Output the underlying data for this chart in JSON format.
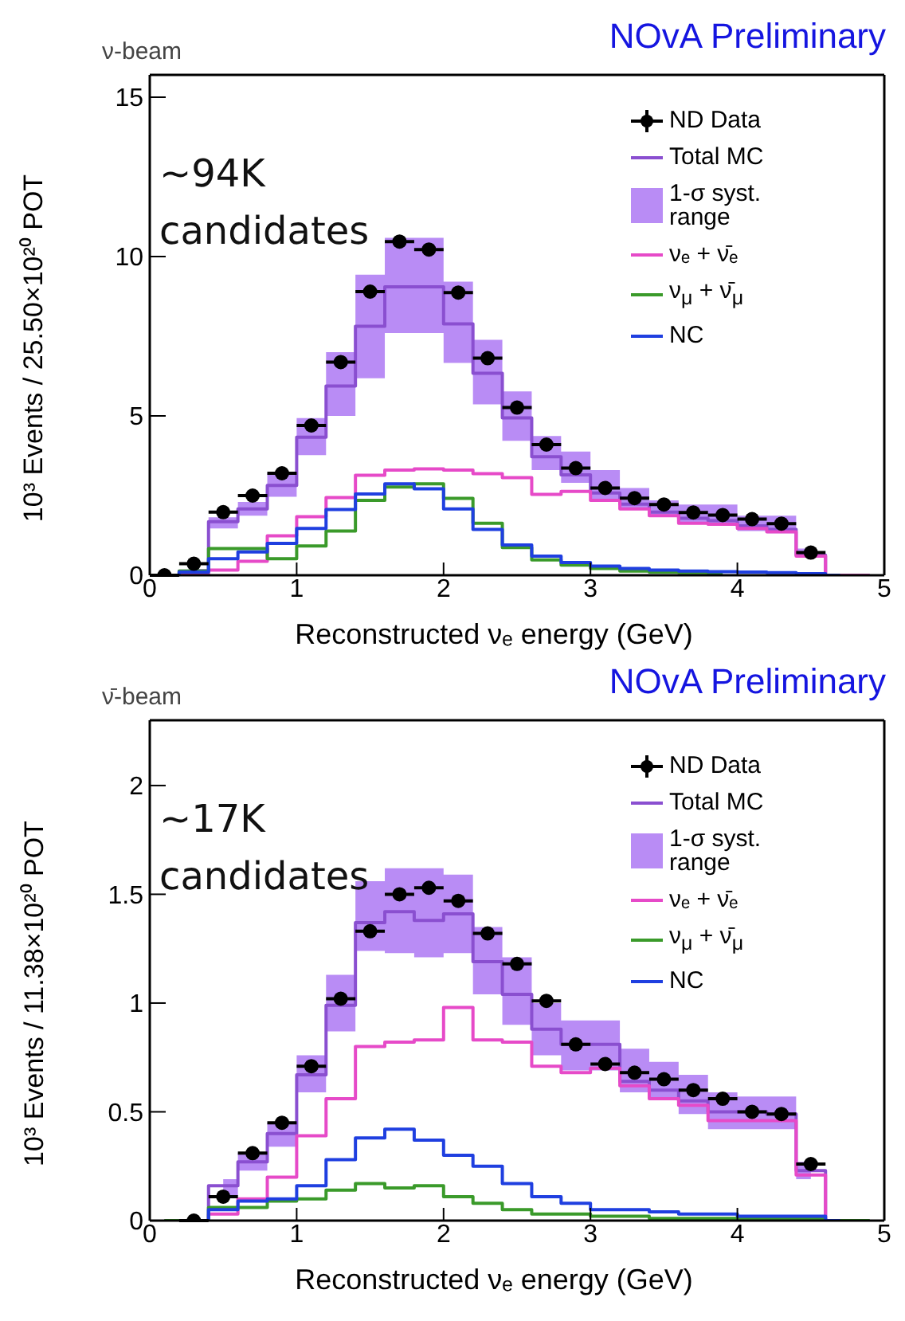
{
  "chart_data": [
    {
      "type": "step",
      "title": "ν-beam",
      "subtitle": "NOvA Preliminary",
      "xlabel": "Reconstructed νₑ energy (GeV)",
      "ylabel": "10³ Events / 25.50×10²⁰ POT",
      "annotations": [
        "~94K candidates",
        "1-σ syst. range"
      ],
      "x": [
        0.1,
        0.3,
        0.5,
        0.7,
        0.9,
        1.1,
        1.3,
        1.5,
        1.7,
        1.9,
        2.1,
        2.3,
        2.5,
        2.7,
        2.9,
        3.1,
        3.3,
        3.5,
        3.7,
        3.9,
        4.1,
        4.3,
        4.5,
        4.7,
        4.9
      ],
      "xlim": [
        0,
        5
      ],
      "xticks": [
        0,
        1,
        2,
        3,
        4,
        5
      ],
      "ylim": [
        0,
        15.7
      ],
      "yticks": [
        0,
        5,
        10,
        15
      ],
      "legend": "top right",
      "grid": false,
      "series": [
        {
          "name": "ND Data",
          "type": "scatter",
          "marker": "circle",
          "color": "#000000",
          "values": [
            0,
            0.36,
            1.98,
            2.5,
            3.2,
            4.7,
            6.69,
            8.9,
            10.47,
            10.22,
            8.87,
            6.81,
            5.26,
            4.1,
            3.36,
            2.74,
            2.42,
            2.22,
            1.97,
            1.89,
            1.76,
            1.62,
            0.71,
            null,
            null
          ],
          "xerrors": [
            0.1,
            0.1,
            0.1,
            0.1,
            0.1,
            0.1,
            0.1,
            0.1,
            0.1,
            0.1,
            0.1,
            0.1,
            0.1,
            0.1,
            0.1,
            0.1,
            0.1,
            0.1,
            0.1,
            0.1,
            0.1,
            0.1,
            0.1,
            null,
            null
          ]
        },
        {
          "name": "Total MC",
          "color": "#8a4fd0",
          "values": [
            0,
            0.13,
            1.68,
            2.08,
            2.82,
            4.33,
            5.94,
            7.81,
            9.05,
            9.05,
            7.89,
            6.34,
            4.94,
            3.72,
            3.15,
            2.58,
            2.23,
            1.98,
            1.79,
            1.71,
            1.55,
            1.44,
            0.63,
            0,
            0
          ],
          "lower": [
            null,
            0.1,
            1.47,
            1.87,
            2.46,
            3.77,
            5.0,
            6.18,
            7.6,
            7.6,
            6.66,
            5.36,
            4.22,
            3.3,
            2.9,
            2.38,
            2.1,
            1.84,
            1.6,
            1.63,
            1.39,
            1.32,
            0.57,
            null,
            null
          ],
          "upper": [
            null,
            0.2,
            1.82,
            2.3,
            3.2,
            4.93,
            7.0,
            9.43,
            10.59,
            10.59,
            9.21,
            7.39,
            5.77,
            4.37,
            3.88,
            3.3,
            2.74,
            2.35,
            2.22,
            2.22,
            1.87,
            1.87,
            0.84,
            null,
            null
          ]
        },
        {
          "name": "νₑ + ν̄ₑ",
          "color": "#e64ac8",
          "values": [
            0,
            0.02,
            0.16,
            0.44,
            1.24,
            1.84,
            2.44,
            3.14,
            3.3,
            3.34,
            3.3,
            3.19,
            3.06,
            2.54,
            2.63,
            2.35,
            2.08,
            1.87,
            1.63,
            1.6,
            1.47,
            1.36,
            0.6,
            0,
            0
          ]
        },
        {
          "name": "ν$_{μ}$ + ν̄$_{μ}$",
          "color": "#3a9a2a",
          "values": [
            0,
            0.13,
            0.84,
            0.84,
            0.52,
            0.92,
            1.39,
            2.35,
            2.77,
            2.87,
            2.41,
            1.63,
            0.87,
            0.48,
            0.32,
            0.21,
            0.13,
            0.1,
            0.08,
            0.06,
            null,
            null,
            null,
            null,
            null
          ]
        },
        {
          "name": "NC",
          "color": "#1f3fe0",
          "values": [
            0,
            0.1,
            0.52,
            0.73,
            1.0,
            1.47,
            2.06,
            2.55,
            2.87,
            2.71,
            2.08,
            1.44,
            0.95,
            0.6,
            0.4,
            0.29,
            0.21,
            0.16,
            0.13,
            0.11,
            0.1,
            0.08,
            0.05,
            0,
            null
          ]
        }
      ]
    },
    {
      "type": "step",
      "title": "ν̄-beam",
      "subtitle": "NOvA Preliminary",
      "xlabel": "Reconstructed νₑ energy (GeV)",
      "ylabel": "10³ Events / 11.38×10²⁰ POT",
      "annotations": [
        "~17K candidates",
        "1-σ syst. range"
      ],
      "x": [
        0.1,
        0.3,
        0.5,
        0.7,
        0.9,
        1.1,
        1.3,
        1.5,
        1.7,
        1.9,
        2.1,
        2.3,
        2.5,
        2.7,
        2.9,
        3.1,
        3.3,
        3.5,
        3.7,
        3.9,
        4.1,
        4.3,
        4.5,
        4.7,
        4.9
      ],
      "xlim": [
        0,
        5
      ],
      "xticks": [
        0,
        1,
        2,
        3,
        4,
        5
      ],
      "ylim": [
        0,
        2.3
      ],
      "yticks": [
        0,
        0.5,
        1,
        1.5,
        2
      ],
      "legend": "top right",
      "grid": false,
      "series": [
        {
          "name": "ND Data",
          "type": "scatter",
          "marker": "circle",
          "color": "#000000",
          "values": [
            null,
            0,
            0.11,
            0.31,
            0.45,
            0.71,
            1.02,
            1.33,
            1.5,
            1.53,
            1.47,
            1.32,
            1.18,
            1.01,
            0.81,
            0.72,
            0.68,
            0.65,
            0.6,
            0.56,
            0.5,
            0.49,
            0.26,
            null,
            null
          ],
          "xerrors": [
            null,
            0.1,
            0.1,
            0.1,
            0.1,
            0.1,
            0.1,
            0.1,
            0.1,
            0.1,
            0.1,
            0.1,
            0.1,
            0.1,
            0.1,
            0.1,
            0.1,
            0.1,
            0.1,
            0.1,
            0.1,
            0.1,
            0.1,
            null,
            null
          ]
        },
        {
          "name": "Total MC",
          "color": "#8a4fd0",
          "values": [
            0,
            0,
            0.16,
            0.27,
            0.4,
            0.67,
            0.99,
            1.37,
            1.42,
            1.38,
            1.41,
            1.19,
            1.04,
            0.88,
            0.81,
            0.81,
            0.64,
            0.6,
            0.55,
            0.5,
            0.5,
            0.49,
            0.23,
            0,
            0
          ],
          "lower": [
            null,
            null,
            0.11,
            0.23,
            0.34,
            0.59,
            0.87,
            1.24,
            1.23,
            1.21,
            1.23,
            1.04,
            0.9,
            0.76,
            0.69,
            0.69,
            0.59,
            0.56,
            0.49,
            0.42,
            0.42,
            0.42,
            0.19,
            null,
            null
          ],
          "upper": [
            null,
            null,
            0.19,
            0.31,
            0.45,
            0.76,
            1.13,
            1.56,
            1.62,
            1.62,
            1.59,
            1.35,
            1.21,
            1.0,
            0.92,
            0.92,
            0.79,
            0.73,
            0.67,
            0.59,
            0.57,
            0.57,
            0.27,
            null,
            null
          ]
        },
        {
          "name": "νₑ + ν̄ₑ",
          "color": "#e64ac8",
          "values": [
            0,
            0,
            0.03,
            0.1,
            0.2,
            0.39,
            0.56,
            0.8,
            0.82,
            0.83,
            0.98,
            0.83,
            0.82,
            0.71,
            0.68,
            0.7,
            0.62,
            0.56,
            0.53,
            0.46,
            0.46,
            0.46,
            0.21,
            0,
            0
          ]
        },
        {
          "name": "ν$_{μ}$ + ν̄$_{μ}$",
          "color": "#3a9a2a",
          "values": [
            0,
            0,
            0.06,
            0.06,
            0.09,
            0.1,
            0.14,
            0.17,
            0.15,
            0.16,
            0.11,
            0.08,
            0.05,
            0.03,
            0.03,
            0.02,
            0.02,
            0.01,
            0.01,
            0.01,
            0.01,
            0.01,
            0.01,
            0,
            0
          ]
        },
        {
          "name": "NC",
          "color": "#1f3fe0",
          "values": [
            null,
            0,
            0.05,
            0.09,
            0.1,
            0.16,
            0.28,
            0.38,
            0.42,
            0.37,
            0.3,
            0.25,
            0.17,
            0.11,
            0.08,
            0.05,
            0.05,
            0.04,
            0.03,
            0.03,
            0.02,
            0.02,
            0.02,
            0,
            null
          ]
        }
      ]
    }
  ]
}
